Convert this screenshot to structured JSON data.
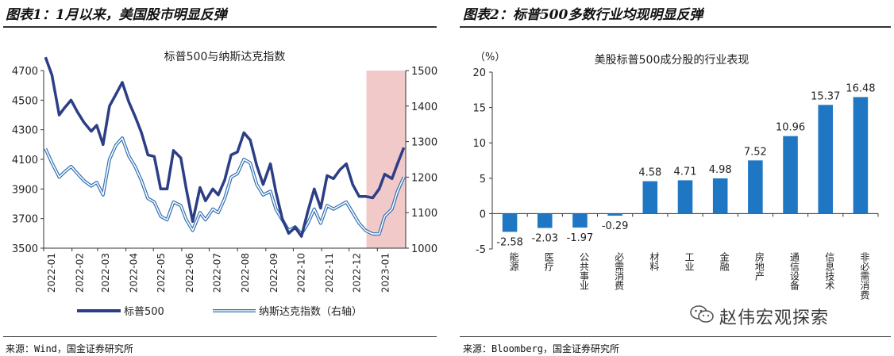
{
  "left": {
    "heading": "图表1：1月以来，美国股市明显反弹",
    "source": "来源：Wind，国金证券研究所",
    "chart_data": {
      "type": "line",
      "title": "标普500与纳斯达克指数",
      "x_ticks": [
        "2022-01",
        "2022-02",
        "2022-03",
        "2022-04",
        "2022-05",
        "2022-06",
        "2022-07",
        "2022-08",
        "2022-09",
        "2022-10",
        "2022-11",
        "2022-12",
        "2023-01"
      ],
      "y_left": {
        "ticks": [
          "3500",
          "3700",
          "3900",
          "4100",
          "4300",
          "4500",
          "4700"
        ],
        "range": [
          3500,
          4700
        ]
      },
      "y_right": {
        "ticks": [
          "1000",
          "1100",
          "1200",
          "1300",
          "1400",
          "1500"
        ],
        "range": [
          1000,
          1500
        ]
      },
      "highlight": {
        "from": "2022-12-20",
        "to": "2023-02-01",
        "color": "#f2c9c9"
      },
      "series": [
        {
          "name": "标普500",
          "axis": "left",
          "color": "#2c3e85",
          "x": [
            "2022-01-03",
            "2022-01-10",
            "2022-01-18",
            "2022-01-24",
            "2022-01-31",
            "2022-02-07",
            "2022-02-14",
            "2022-02-22",
            "2022-02-28",
            "2022-03-07",
            "2022-03-14",
            "2022-03-21",
            "2022-03-28",
            "2022-04-04",
            "2022-04-11",
            "2022-04-18",
            "2022-04-25",
            "2022-05-02",
            "2022-05-09",
            "2022-05-16",
            "2022-05-23",
            "2022-05-31",
            "2022-06-06",
            "2022-06-13",
            "2022-06-21",
            "2022-06-27",
            "2022-07-05",
            "2022-07-11",
            "2022-07-18",
            "2022-07-25",
            "2022-08-01",
            "2022-08-08",
            "2022-08-15",
            "2022-08-22",
            "2022-08-29",
            "2022-09-06",
            "2022-09-12",
            "2022-09-19",
            "2022-09-26",
            "2022-10-03",
            "2022-10-10",
            "2022-10-17",
            "2022-10-24",
            "2022-10-31",
            "2022-11-07",
            "2022-11-14",
            "2022-11-21",
            "2022-11-28",
            "2022-12-05",
            "2022-12-12",
            "2022-12-19",
            "2022-12-27",
            "2023-01-03",
            "2023-01-09",
            "2023-01-17",
            "2023-01-23",
            "2023-01-30"
          ],
          "y": [
            4790,
            4670,
            4400,
            4450,
            4500,
            4420,
            4350,
            4290,
            4330,
            4200,
            4460,
            4540,
            4620,
            4490,
            4390,
            4280,
            4130,
            4120,
            3900,
            3900,
            4160,
            4110,
            3900,
            3680,
            3910,
            3820,
            3900,
            3860,
            3960,
            4130,
            4150,
            4280,
            4230,
            4060,
            3930,
            4070,
            3880,
            3700,
            3600,
            3640,
            3580,
            3750,
            3900,
            3770,
            3990,
            3970,
            4030,
            4070,
            3930,
            3850,
            3850,
            3840,
            3900,
            4000,
            3970,
            4070,
            4180
          ]
        },
        {
          "name": "纳斯达克指数（右轴）",
          "axis": "right",
          "color": "#7fb2e5",
          "x": [
            "2022-01-03",
            "2022-01-10",
            "2022-01-18",
            "2022-01-24",
            "2022-01-31",
            "2022-02-07",
            "2022-02-14",
            "2022-02-22",
            "2022-02-28",
            "2022-03-07",
            "2022-03-14",
            "2022-03-21",
            "2022-03-28",
            "2022-04-04",
            "2022-04-11",
            "2022-04-18",
            "2022-04-25",
            "2022-05-02",
            "2022-05-09",
            "2022-05-16",
            "2022-05-23",
            "2022-05-31",
            "2022-06-06",
            "2022-06-13",
            "2022-06-21",
            "2022-06-27",
            "2022-07-05",
            "2022-07-11",
            "2022-07-18",
            "2022-07-25",
            "2022-08-01",
            "2022-08-08",
            "2022-08-15",
            "2022-08-22",
            "2022-08-29",
            "2022-09-06",
            "2022-09-12",
            "2022-09-19",
            "2022-09-26",
            "2022-10-03",
            "2022-10-10",
            "2022-10-17",
            "2022-10-24",
            "2022-10-31",
            "2022-11-07",
            "2022-11-14",
            "2022-11-21",
            "2022-11-28",
            "2022-12-05",
            "2022-12-12",
            "2022-12-19",
            "2022-12-27",
            "2023-01-03",
            "2023-01-09",
            "2023-01-17",
            "2023-01-23",
            "2023-01-30"
          ],
          "y": [
            1280,
            1240,
            1200,
            1215,
            1230,
            1210,
            1190,
            1175,
            1185,
            1150,
            1250,
            1290,
            1310,
            1260,
            1230,
            1190,
            1140,
            1130,
            1090,
            1080,
            1130,
            1120,
            1080,
            1050,
            1100,
            1080,
            1110,
            1100,
            1140,
            1200,
            1210,
            1250,
            1240,
            1180,
            1150,
            1160,
            1110,
            1080,
            1050,
            1060,
            1040,
            1070,
            1110,
            1070,
            1120,
            1110,
            1120,
            1130,
            1100,
            1070,
            1050,
            1040,
            1040,
            1090,
            1110,
            1160,
            1200
          ]
        }
      ]
    }
  },
  "right": {
    "heading": "图表2：标普500多数行业均现明显反弹",
    "source": "来源：Bloomberg，国金证券研究所",
    "chart_data": {
      "type": "bar",
      "title": "美股标普500成分股的行业表现",
      "unit_label": "（%）",
      "categories": [
        "能源",
        "医疗",
        "公共事业",
        "必需消费",
        "材料",
        "工业",
        "金融",
        "房地产",
        "通信设备",
        "信息技术",
        "非必需消费"
      ],
      "values": [
        -2.58,
        -2.03,
        -1.97,
        -0.29,
        4.58,
        4.71,
        4.98,
        7.52,
        10.96,
        15.37,
        16.48
      ],
      "value_labels": [
        "-2.58",
        "-2.03",
        "-1.97",
        "-0.29",
        "4.58",
        "4.71",
        "4.98",
        "7.52",
        "10.96",
        "15.37",
        "16.48"
      ],
      "ylim": [
        -5,
        20
      ],
      "y_ticks": [
        "-5",
        "0",
        "5",
        "10",
        "15",
        "20"
      ],
      "bar_color": "#1f77c4"
    }
  },
  "watermark": "赵伟宏观探索"
}
